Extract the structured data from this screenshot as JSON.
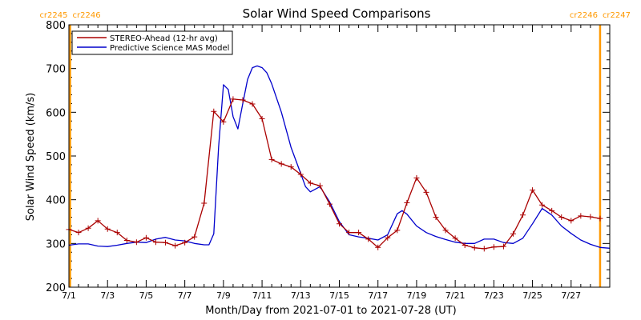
{
  "chart_data": {
    "type": "line",
    "title": "Solar Wind Speed Comparisons",
    "xlabel": "Month/Day from 2021-07-01 to 2021-07-28 (UT)",
    "ylabel": "Solar Wind Speed (km/s)",
    "xlim": [
      "2021-07-01T00:00",
      "2021-07-29T00:00"
    ],
    "ylim": [
      200,
      800
    ],
    "x_ticks": [
      {
        "date": "2021-07-01T00:00",
        "label": "7/1"
      },
      {
        "date": "2021-07-03T00:00",
        "label": "7/3"
      },
      {
        "date": "2021-07-05T00:00",
        "label": "7/5"
      },
      {
        "date": "2021-07-07T00:00",
        "label": "7/7"
      },
      {
        "date": "2021-07-09T00:00",
        "label": "7/9"
      },
      {
        "date": "2021-07-11T00:00",
        "label": "7/11"
      },
      {
        "date": "2021-07-13T00:00",
        "label": "7/13"
      },
      {
        "date": "2021-07-15T00:00",
        "label": "7/15"
      },
      {
        "date": "2021-07-17T00:00",
        "label": "7/17"
      },
      {
        "date": "2021-07-19T00:00",
        "label": "7/19"
      },
      {
        "date": "2021-07-21T00:00",
        "label": "7/21"
      },
      {
        "date": "2021-07-23T00:00",
        "label": "7/23"
      },
      {
        "date": "2021-07-25T00:00",
        "label": "7/25"
      },
      {
        "date": "2021-07-27T00:00",
        "label": "7/27"
      }
    ],
    "y_ticks": [
      200,
      300,
      400,
      500,
      600,
      700,
      800
    ],
    "legend": {
      "placement": "top-left",
      "entries": [
        {
          "name": "STEREO-Ahead (12-hr avg)",
          "color": "#aa0000"
        },
        {
          "name": "Predictive Science MAS Model",
          "color": "#0000cc"
        }
      ]
    },
    "carrington_rotations": [
      {
        "date": "2021-07-01T00:00",
        "left_label": "cr2245",
        "right_label": "cr2246"
      },
      {
        "date": "2021-07-28T12:00",
        "left_label": "cr2246",
        "right_label": "cr2247"
      }
    ],
    "boundary_color": "#ff9900",
    "series": [
      {
        "name": "STEREO-Ahead (12-hr avg)",
        "color": "#aa0000",
        "marker": "+",
        "points": [
          [
            "2021-07-01T00:00",
            332
          ],
          [
            "2021-07-01T12:00",
            325
          ],
          [
            "2021-07-02T00:00",
            335
          ],
          [
            "2021-07-02T12:00",
            352
          ],
          [
            "2021-07-03T00:00",
            333
          ],
          [
            "2021-07-03T12:00",
            325
          ],
          [
            "2021-07-04T00:00",
            307
          ],
          [
            "2021-07-04T12:00",
            303
          ],
          [
            "2021-07-05T00:00",
            313
          ],
          [
            "2021-07-05T12:00",
            303
          ],
          [
            "2021-07-06T00:00",
            302
          ],
          [
            "2021-07-06T12:00",
            295
          ],
          [
            "2021-07-07T00:00",
            302
          ],
          [
            "2021-07-07T12:00",
            315
          ],
          [
            "2021-07-08T00:00",
            392
          ],
          [
            "2021-07-08T12:00",
            602
          ],
          [
            "2021-07-09T00:00",
            578
          ],
          [
            "2021-07-09T12:00",
            630
          ],
          [
            "2021-07-10T00:00",
            628
          ],
          [
            "2021-07-10T12:00",
            619
          ],
          [
            "2021-07-11T00:00",
            585
          ],
          [
            "2021-07-11T12:00",
            492
          ],
          [
            "2021-07-12T00:00",
            482
          ],
          [
            "2021-07-12T12:00",
            475
          ],
          [
            "2021-07-13T00:00",
            458
          ],
          [
            "2021-07-13T12:00",
            438
          ],
          [
            "2021-07-14T00:00",
            432
          ],
          [
            "2021-07-14T12:00",
            390
          ],
          [
            "2021-07-15T00:00",
            345
          ],
          [
            "2021-07-15T12:00",
            325
          ],
          [
            "2021-07-16T00:00",
            325
          ],
          [
            "2021-07-16T12:00",
            310
          ],
          [
            "2021-07-17T00:00",
            291
          ],
          [
            "2021-07-17T12:00",
            313
          ],
          [
            "2021-07-18T00:00",
            330
          ],
          [
            "2021-07-18T12:00",
            393
          ],
          [
            "2021-07-19T00:00",
            450
          ],
          [
            "2021-07-19T12:00",
            417
          ],
          [
            "2021-07-20T00:00",
            360
          ],
          [
            "2021-07-20T12:00",
            330
          ],
          [
            "2021-07-21T00:00",
            312
          ],
          [
            "2021-07-21T12:00",
            296
          ],
          [
            "2021-07-22T00:00",
            290
          ],
          [
            "2021-07-22T12:00",
            288
          ],
          [
            "2021-07-23T00:00",
            292
          ],
          [
            "2021-07-23T12:00",
            293
          ],
          [
            "2021-07-24T00:00",
            322
          ],
          [
            "2021-07-24T12:00",
            365
          ],
          [
            "2021-07-25T00:00",
            422
          ],
          [
            "2021-07-25T12:00",
            388
          ],
          [
            "2021-07-26T00:00",
            375
          ],
          [
            "2021-07-26T12:00",
            360
          ],
          [
            "2021-07-27T00:00",
            352
          ],
          [
            "2021-07-27T12:00",
            363
          ],
          [
            "2021-07-28T00:00",
            361
          ],
          [
            "2021-07-28T12:00",
            357
          ]
        ]
      },
      {
        "name": "Predictive Science MAS Model",
        "color": "#0000cc",
        "marker": "",
        "points": [
          [
            "2021-07-01T00:00",
            296
          ],
          [
            "2021-07-01T12:00",
            299
          ],
          [
            "2021-07-02T00:00",
            299
          ],
          [
            "2021-07-02T12:00",
            294
          ],
          [
            "2021-07-03T00:00",
            293
          ],
          [
            "2021-07-03T12:00",
            296
          ],
          [
            "2021-07-04T00:00",
            300
          ],
          [
            "2021-07-04T12:00",
            303
          ],
          [
            "2021-07-05T00:00",
            302
          ],
          [
            "2021-07-05T12:00",
            310
          ],
          [
            "2021-07-06T00:00",
            314
          ],
          [
            "2021-07-06T12:00",
            308
          ],
          [
            "2021-07-07T00:00",
            306
          ],
          [
            "2021-07-07T12:00",
            300
          ],
          [
            "2021-07-08T00:00",
            297
          ],
          [
            "2021-07-08T06:00",
            297
          ],
          [
            "2021-07-08T12:00",
            322
          ],
          [
            "2021-07-08T18:00",
            520
          ],
          [
            "2021-07-09T00:00",
            663
          ],
          [
            "2021-07-09T06:00",
            652
          ],
          [
            "2021-07-09T12:00",
            590
          ],
          [
            "2021-07-09T18:00",
            562
          ],
          [
            "2021-07-10T00:00",
            620
          ],
          [
            "2021-07-10T06:00",
            675
          ],
          [
            "2021-07-10T12:00",
            702
          ],
          [
            "2021-07-10T18:00",
            706
          ],
          [
            "2021-07-11T00:00",
            702
          ],
          [
            "2021-07-11T06:00",
            690
          ],
          [
            "2021-07-11T12:00",
            665
          ],
          [
            "2021-07-12T00:00",
            600
          ],
          [
            "2021-07-12T12:00",
            520
          ],
          [
            "2021-07-13T00:00",
            460
          ],
          [
            "2021-07-13T06:00",
            430
          ],
          [
            "2021-07-13T12:00",
            418
          ],
          [
            "2021-07-14T00:00",
            430
          ],
          [
            "2021-07-14T12:00",
            395
          ],
          [
            "2021-07-15T00:00",
            350
          ],
          [
            "2021-07-15T12:00",
            320
          ],
          [
            "2021-07-16T00:00",
            315
          ],
          [
            "2021-07-16T12:00",
            312
          ],
          [
            "2021-07-17T00:00",
            308
          ],
          [
            "2021-07-17T12:00",
            320
          ],
          [
            "2021-07-18T00:00",
            368
          ],
          [
            "2021-07-18T06:00",
            375
          ],
          [
            "2021-07-18T12:00",
            367
          ],
          [
            "2021-07-19T00:00",
            340
          ],
          [
            "2021-07-19T12:00",
            325
          ],
          [
            "2021-07-20T00:00",
            316
          ],
          [
            "2021-07-20T12:00",
            309
          ],
          [
            "2021-07-21T00:00",
            303
          ],
          [
            "2021-07-21T12:00",
            300
          ],
          [
            "2021-07-22T00:00",
            300
          ],
          [
            "2021-07-22T12:00",
            310
          ],
          [
            "2021-07-23T00:00",
            310
          ],
          [
            "2021-07-23T12:00",
            302
          ],
          [
            "2021-07-24T00:00",
            300
          ],
          [
            "2021-07-24T12:00",
            312
          ],
          [
            "2021-07-25T00:00",
            345
          ],
          [
            "2021-07-25T12:00",
            380
          ],
          [
            "2021-07-26T00:00",
            365
          ],
          [
            "2021-07-26T12:00",
            340
          ],
          [
            "2021-07-27T00:00",
            323
          ],
          [
            "2021-07-27T12:00",
            308
          ],
          [
            "2021-07-28T00:00",
            298
          ],
          [
            "2021-07-28T12:00",
            291
          ],
          [
            "2021-07-29T00:00",
            289
          ]
        ]
      }
    ]
  }
}
